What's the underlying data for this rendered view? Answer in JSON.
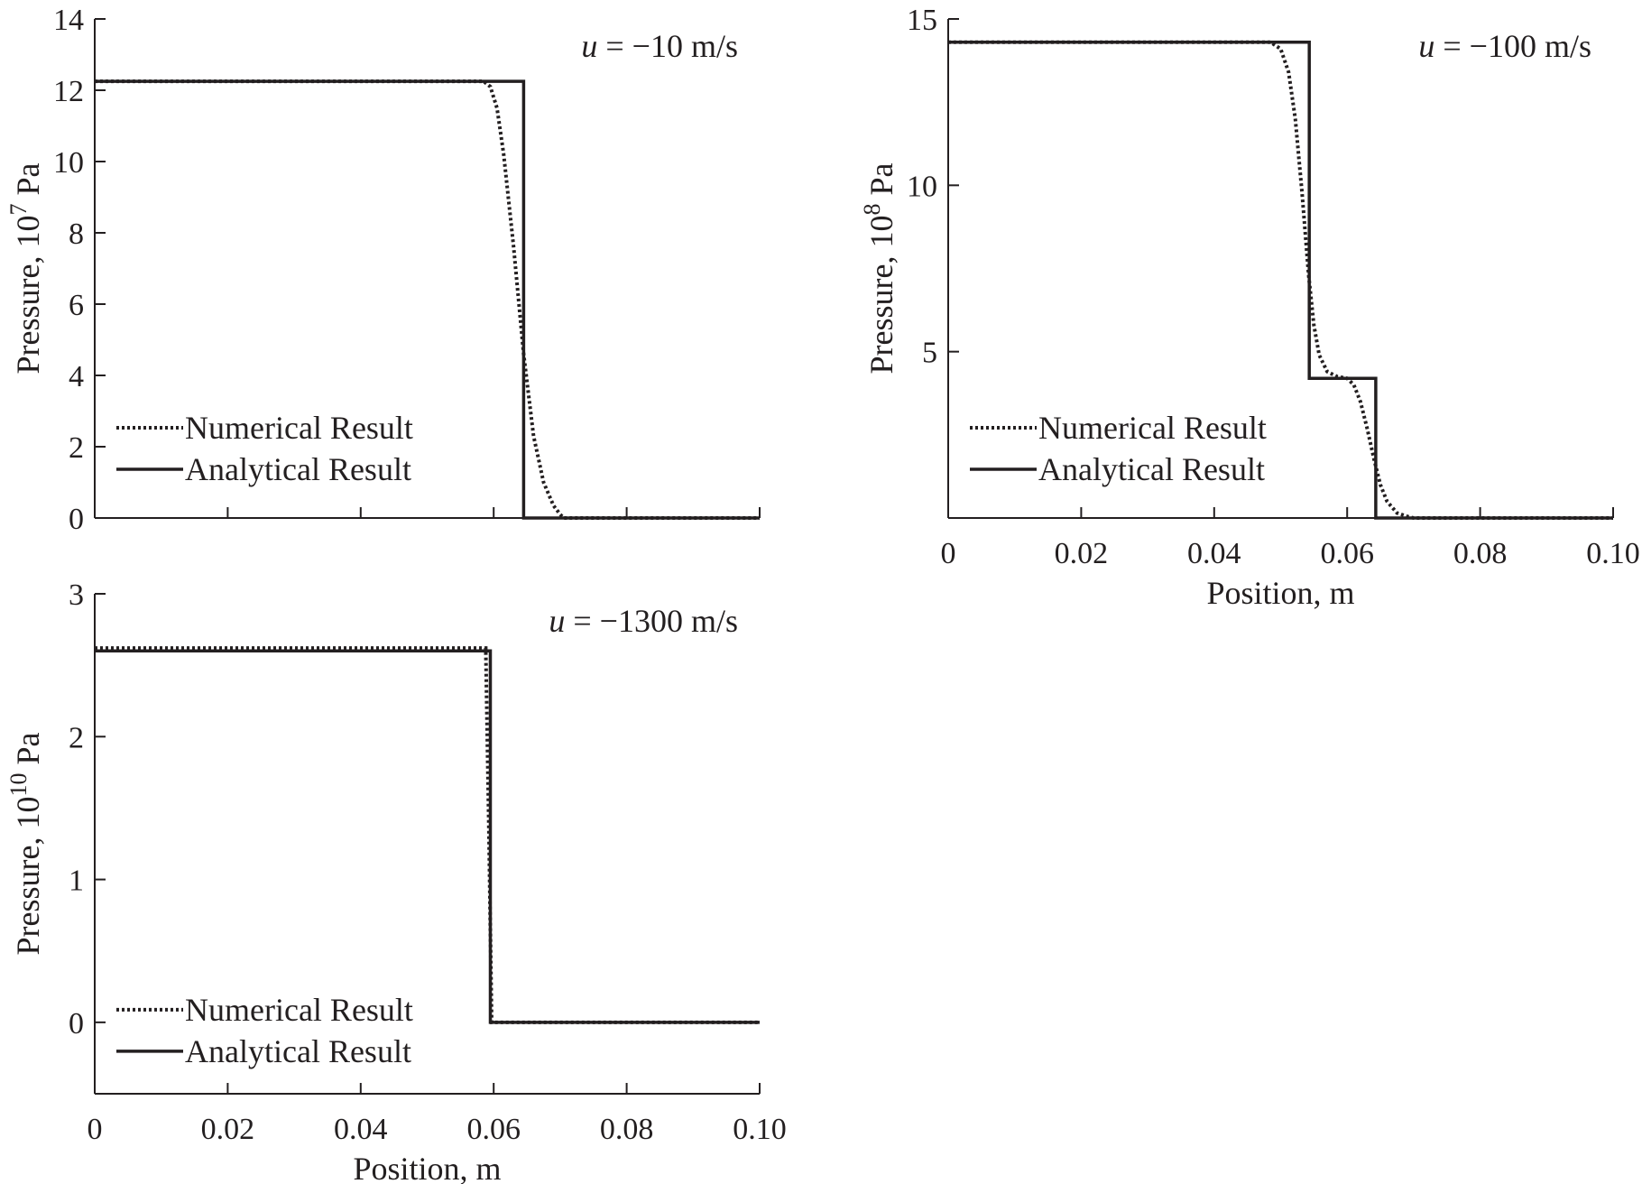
{
  "chart_data": [
    {
      "type": "line",
      "panel": "top-left",
      "annotation_italic": "u",
      "annotation_rest": " = −10 m/s",
      "ylabel": "Pressure, 10",
      "ylabel_exp": "7",
      "ylabel_unit": " Pa",
      "xlabel": "",
      "xlim": [
        0,
        0.1
      ],
      "ylim": [
        0,
        14
      ],
      "yticks": [
        0,
        2,
        4,
        6,
        8,
        10,
        12,
        14
      ],
      "ytick_labels": [
        "0",
        "2",
        "4",
        "6",
        "8",
        "10",
        "12",
        "14"
      ],
      "xticks": [
        0,
        0.02,
        0.04,
        0.06,
        0.08,
        0.1
      ],
      "xtick_labels": [],
      "legend_position": "bottom-left",
      "series": [
        {
          "name": "Numerical Result",
          "style": "dotted",
          "x": [
            0,
            0.0585,
            0.0595,
            0.0605,
            0.0615,
            0.063,
            0.0645,
            0.066,
            0.0675,
            0.069,
            0.07,
            0.0705,
            0.1
          ],
          "y": [
            12.25,
            12.25,
            12.1,
            11.5,
            10.2,
            7.6,
            4.6,
            2.3,
            1.0,
            0.35,
            0.1,
            0,
            0
          ]
        },
        {
          "name": "Analytical Result",
          "style": "solid",
          "x": [
            0,
            0.0645,
            0.0645,
            0.1
          ],
          "y": [
            12.25,
            12.25,
            0,
            0
          ]
        }
      ]
    },
    {
      "type": "line",
      "panel": "top-right",
      "annotation_italic": "u",
      "annotation_rest": " = −100 m/s",
      "ylabel": "Pressure, 10",
      "ylabel_exp": "8",
      "ylabel_unit": " Pa",
      "xlabel": "Position, m",
      "xlim": [
        0,
        0.1
      ],
      "ylim": [
        0,
        15
      ],
      "yticks": [
        5,
        10,
        15
      ],
      "ytick_labels": [
        "5",
        "10",
        "15"
      ],
      "xticks": [
        0,
        0.02,
        0.04,
        0.06,
        0.08,
        0.1
      ],
      "xtick_labels": [
        "0",
        "0.02",
        "0.04",
        "0.06",
        "0.08",
        "0.10"
      ],
      "legend_position": "bottom-left",
      "series": [
        {
          "name": "Numerical Result",
          "style": "dotted",
          "x": [
            0,
            0.0485,
            0.05,
            0.0512,
            0.0522,
            0.0532,
            0.0542,
            0.055,
            0.0558,
            0.057,
            0.0585,
            0.06,
            0.061,
            0.062,
            0.063,
            0.064,
            0.065,
            0.066,
            0.0675,
            0.069,
            0.07,
            0.1
          ],
          "y": [
            14.3,
            14.3,
            14.1,
            13.4,
            12.0,
            9.8,
            7.3,
            5.8,
            4.9,
            4.4,
            4.25,
            4.2,
            4.0,
            3.5,
            2.7,
            1.8,
            1.0,
            0.5,
            0.15,
            0.05,
            0,
            0
          ]
        },
        {
          "name": "Analytical Result",
          "style": "solid",
          "x": [
            0,
            0.0543,
            0.0543,
            0.0643,
            0.0643,
            0.1
          ],
          "y": [
            14.3,
            14.3,
            4.2,
            4.2,
            0,
            0
          ]
        }
      ]
    },
    {
      "type": "line",
      "panel": "bottom-left",
      "annotation_italic": "u",
      "annotation_rest": " = −1300 m/s",
      "ylabel": "Pressure, 10",
      "ylabel_exp": "10",
      "ylabel_unit": " Pa",
      "xlabel": "Position, m",
      "xlim": [
        0,
        0.1
      ],
      "ylim": [
        -0.5,
        3
      ],
      "yticks": [
        0,
        1,
        2,
        3
      ],
      "ytick_labels": [
        "0",
        "1",
        "2",
        "3"
      ],
      "xticks": [
        0,
        0.02,
        0.04,
        0.06,
        0.08,
        0.1
      ],
      "xtick_labels": [
        "0",
        "0.02",
        "0.04",
        "0.06",
        "0.08",
        "0.10"
      ],
      "legend_position": "bottom-left",
      "series": [
        {
          "name": "Numerical Result",
          "style": "dotted",
          "x": [
            0,
            0.0588,
            0.0593,
            0.0597,
            0.1
          ],
          "y": [
            2.62,
            2.62,
            1.3,
            0,
            0
          ]
        },
        {
          "name": "Analytical Result",
          "style": "solid",
          "x": [
            0,
            0.0595,
            0.0595,
            0.1
          ],
          "y": [
            2.6,
            2.6,
            0,
            0
          ]
        }
      ]
    }
  ]
}
